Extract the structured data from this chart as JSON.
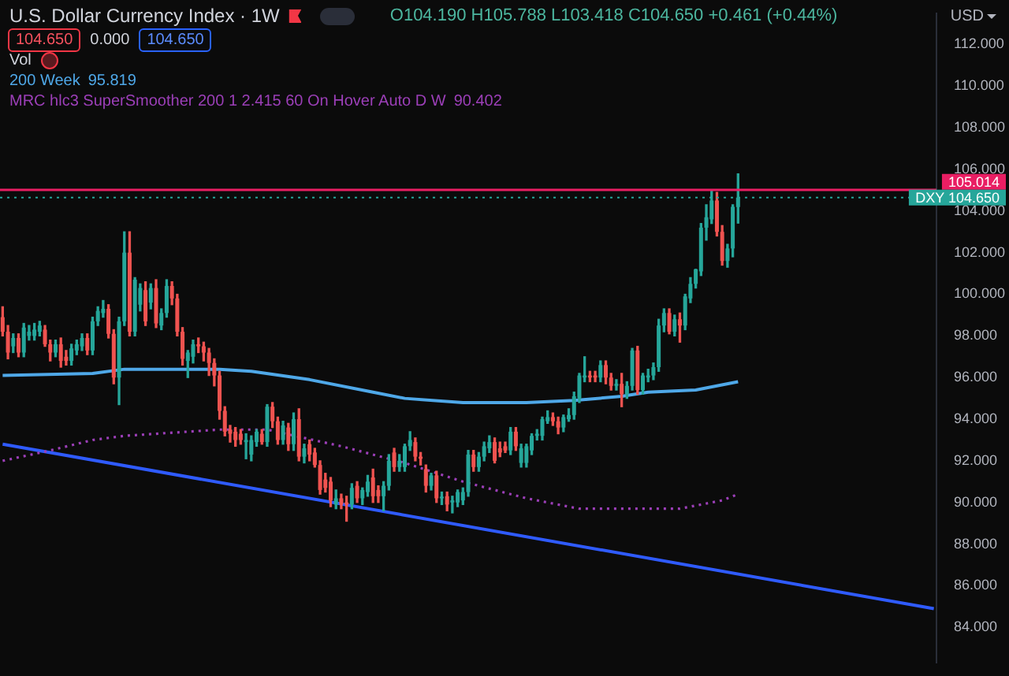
{
  "chart_data": {
    "type": "candlestick",
    "title": "U.S. Dollar Currency Index · 1W",
    "ylabel": "USD",
    "legend": "top left",
    "tick_labels": "y",
    "marker": "none",
    "categories": [
      null,
      null,
      null,
      null,
      null,
      null,
      null,
      null,
      null,
      null,
      null,
      null,
      null,
      null,
      null,
      null,
      null,
      null,
      null,
      null,
      null,
      null,
      null,
      null,
      null,
      null,
      null,
      null,
      null,
      null,
      null,
      null,
      null,
      null,
      null,
      null,
      null,
      null,
      null,
      null,
      null,
      null,
      null,
      null,
      null,
      null,
      null,
      null,
      null,
      null,
      null,
      null,
      null,
      null,
      null,
      null,
      null,
      null,
      null,
      null,
      null,
      null,
      null,
      null,
      null,
      null,
      null,
      null,
      null,
      null,
      null,
      null,
      null,
      null,
      null,
      null,
      null,
      null,
      null,
      null,
      null,
      null,
      null,
      null,
      null,
      null,
      null,
      null,
      null,
      null,
      null,
      null,
      null,
      null,
      null,
      null,
      null,
      null,
      null,
      null,
      null,
      null,
      null,
      null,
      null,
      null,
      null,
      null,
      null,
      null,
      null,
      null,
      null,
      null,
      null,
      null,
      null,
      null,
      null,
      null,
      null,
      null,
      null,
      null,
      null,
      null,
      null,
      null,
      null,
      null,
      null,
      null,
      null,
      null,
      null,
      null,
      null,
      null,
      null,
      null,
      null,
      null,
      null,
      null,
      null,
      null,
      null,
      null,
      null,
      null,
      null,
      null,
      null,
      null,
      null,
      null,
      null,
      null,
      null,
      null,
      null,
      null,
      null,
      null,
      null,
      null,
      null,
      null,
      null,
      null,
      null,
      null,
      null,
      null,
      null,
      null,
      null
    ],
    "ohlc": [
      [
        98.9,
        99.4,
        98.0,
        98.2
      ],
      [
        98.2,
        98.5,
        96.9,
        97.2
      ],
      [
        97.5,
        98.1,
        97.2,
        97.9
      ],
      [
        97.9,
        98.1,
        97.0,
        97.2
      ],
      [
        97.2,
        98.6,
        97.0,
        98.4
      ],
      [
        98.0,
        98.5,
        97.8,
        98.2
      ],
      [
        98.0,
        98.6,
        97.8,
        98.3
      ],
      [
        98.2,
        98.7,
        98.0,
        98.5
      ],
      [
        98.3,
        98.5,
        97.5,
        97.6
      ],
      [
        97.6,
        97.8,
        96.8,
        97.2
      ],
      [
        97.2,
        97.8,
        97.0,
        97.6
      ],
      [
        97.6,
        97.9,
        96.5,
        96.8
      ],
      [
        97.0,
        97.3,
        96.6,
        96.8
      ],
      [
        96.8,
        97.6,
        96.6,
        97.4
      ],
      [
        97.3,
        97.8,
        97.1,
        97.6
      ],
      [
        97.5,
        98.1,
        97.3,
        97.9
      ],
      [
        97.9,
        98.1,
        97.1,
        97.3
      ],
      [
        97.3,
        98.9,
        97.1,
        98.7
      ],
      [
        98.7,
        99.4,
        98.5,
        99.2
      ],
      [
        99.1,
        99.7,
        98.9,
        99.3
      ],
      [
        99.3,
        99.5,
        97.9,
        98.1
      ],
      [
        98.1,
        98.3,
        95.7,
        96.0
      ],
      [
        96.0,
        98.9,
        94.7,
        98.7
      ],
      [
        98.7,
        103.0,
        98.5,
        102.0
      ],
      [
        102.0,
        103.0,
        98.0,
        98.2
      ],
      [
        98.2,
        100.8,
        98.0,
        100.7
      ],
      [
        99.5,
        100.5,
        99.2,
        100.3
      ],
      [
        100.2,
        100.6,
        98.5,
        98.7
      ],
      [
        99.6,
        100.5,
        99.3,
        100.3
      ],
      [
        100.3,
        100.7,
        98.4,
        98.6
      ],
      [
        98.5,
        99.3,
        98.3,
        99.1
      ],
      [
        99.1,
        100.7,
        98.9,
        100.4
      ],
      [
        100.4,
        100.6,
        99.5,
        99.8
      ],
      [
        99.8,
        100.0,
        98.0,
        98.2
      ],
      [
        98.2,
        98.4,
        96.6,
        96.9
      ],
      [
        96.8,
        97.3,
        96.0,
        97.2
      ],
      [
        97.0,
        97.8,
        96.7,
        97.6
      ],
      [
        97.6,
        97.9,
        97.2,
        97.5
      ],
      [
        97.5,
        97.7,
        96.8,
        97.2
      ],
      [
        97.2,
        97.4,
        96.1,
        96.7
      ],
      [
        96.7,
        96.9,
        95.6,
        96.1
      ],
      [
        96.1,
        96.3,
        94.0,
        94.4
      ],
      [
        94.4,
        94.6,
        93.2,
        93.4
      ],
      [
        93.5,
        93.7,
        92.9,
        93.3
      ],
      [
        93.4,
        93.6,
        92.7,
        93.0
      ],
      [
        93.3,
        93.5,
        92.8,
        93.0
      ],
      [
        92.9,
        93.3,
        92.1,
        93.0
      ],
      [
        92.3,
        93.2,
        92.0,
        93.0
      ],
      [
        92.9,
        93.5,
        92.7,
        93.4
      ],
      [
        93.3,
        93.5,
        92.8,
        92.9
      ],
      [
        92.9,
        94.7,
        92.7,
        94.6
      ],
      [
        94.6,
        94.8,
        93.6,
        93.9
      ],
      [
        93.9,
        94.1,
        92.8,
        93.0
      ],
      [
        93.0,
        93.9,
        92.8,
        93.7
      ],
      [
        93.6,
        93.8,
        92.5,
        92.8
      ],
      [
        92.8,
        94.3,
        92.5,
        94.0
      ],
      [
        94.0,
        94.5,
        92.0,
        92.2
      ],
      [
        92.2,
        92.8,
        91.9,
        92.6
      ],
      [
        92.8,
        93.0,
        92.0,
        92.3
      ],
      [
        92.4,
        92.6,
        91.7,
        91.8
      ],
      [
        91.8,
        92.0,
        90.4,
        90.6
      ],
      [
        91.1,
        91.4,
        90.5,
        90.7
      ],
      [
        91.0,
        91.2,
        89.8,
        90.1
      ],
      [
        89.9,
        90.6,
        89.7,
        90.2
      ],
      [
        90.2,
        90.4,
        89.7,
        89.9
      ],
      [
        90.0,
        90.3,
        89.1,
        89.9
      ],
      [
        89.9,
        90.9,
        89.7,
        90.7
      ],
      [
        90.8,
        91.0,
        90.0,
        90.2
      ],
      [
        90.2,
        90.7,
        89.9,
        90.6
      ],
      [
        90.5,
        91.3,
        90.3,
        91.0
      ],
      [
        91.2,
        91.6,
        90.0,
        90.3
      ],
      [
        90.6,
        90.8,
        90.0,
        90.3
      ],
      [
        90.3,
        91.0,
        89.6,
        90.8
      ],
      [
        90.8,
        92.3,
        90.6,
        92.0
      ],
      [
        92.4,
        92.6,
        91.5,
        91.7
      ],
      [
        91.7,
        92.3,
        91.5,
        92.0
      ],
      [
        91.7,
        92.8,
        91.5,
        92.7
      ],
      [
        92.7,
        93.4,
        92.5,
        93.0
      ],
      [
        92.9,
        93.1,
        92.0,
        92.2
      ],
      [
        92.2,
        92.4,
        91.8,
        92.1
      ],
      [
        91.6,
        91.8,
        90.5,
        90.8
      ],
      [
        90.8,
        91.4,
        90.6,
        91.3
      ],
      [
        91.3,
        91.5,
        90.0,
        90.2
      ],
      [
        90.2,
        90.5,
        89.9,
        90.2
      ],
      [
        90.3,
        90.5,
        89.6,
        89.9
      ],
      [
        90.0,
        90.3,
        89.5,
        90.1
      ],
      [
        90.0,
        90.6,
        89.8,
        90.5
      ],
      [
        90.1,
        90.7,
        89.9,
        90.5
      ],
      [
        90.5,
        92.5,
        90.3,
        92.3
      ],
      [
        92.3,
        92.5,
        91.5,
        91.7
      ],
      [
        91.7,
        92.4,
        91.5,
        92.2
      ],
      [
        92.2,
        92.9,
        92.0,
        92.7
      ],
      [
        92.6,
        93.2,
        92.4,
        92.9
      ],
      [
        92.9,
        93.1,
        91.9,
        92.0
      ],
      [
        92.6,
        92.9,
        92.2,
        92.4
      ],
      [
        92.7,
        92.9,
        92.4,
        92.5
      ],
      [
        92.5,
        93.6,
        92.3,
        93.4
      ],
      [
        93.4,
        93.6,
        92.5,
        92.7
      ],
      [
        91.9,
        92.8,
        91.7,
        92.6
      ],
      [
        91.9,
        92.8,
        91.7,
        92.7
      ],
      [
        92.5,
        93.3,
        92.3,
        93.2
      ],
      [
        93.2,
        93.5,
        93.0,
        93.3
      ],
      [
        93.2,
        94.1,
        93.0,
        94.0
      ],
      [
        93.9,
        94.4,
        93.8,
        94.1
      ],
      [
        94.1,
        94.3,
        93.7,
        93.9
      ],
      [
        93.9,
        94.1,
        93.3,
        93.6
      ],
      [
        93.6,
        94.2,
        93.4,
        94.1
      ],
      [
        94.0,
        94.5,
        93.9,
        94.2
      ],
      [
        94.2,
        95.3,
        94.0,
        95.1
      ],
      [
        95.0,
        96.2,
        94.8,
        96.1
      ],
      [
        96.0,
        97.0,
        95.8,
        96.1
      ],
      [
        96.1,
        96.3,
        95.8,
        96.0
      ],
      [
        96.1,
        96.3,
        95.8,
        96.0
      ],
      [
        96.0,
        96.8,
        95.8,
        96.6
      ],
      [
        96.6,
        96.8,
        95.7,
        96.0
      ],
      [
        96.0,
        96.2,
        95.4,
        95.6
      ],
      [
        95.6,
        95.9,
        95.4,
        95.7
      ],
      [
        95.7,
        96.2,
        94.6,
        95.2
      ],
      [
        95.2,
        95.8,
        95.0,
        95.6
      ],
      [
        95.6,
        97.4,
        95.4,
        97.3
      ],
      [
        97.3,
        97.5,
        95.2,
        95.4
      ],
      [
        95.4,
        96.2,
        95.2,
        96.1
      ],
      [
        96.0,
        96.4,
        95.8,
        96.1
      ],
      [
        96.1,
        96.7,
        95.9,
        96.5
      ],
      [
        96.5,
        98.8,
        96.3,
        98.5
      ],
      [
        98.5,
        99.3,
        98.2,
        99.1
      ],
      [
        99.1,
        99.3,
        98.1,
        98.2
      ],
      [
        98.2,
        99.0,
        98.0,
        98.8
      ],
      [
        98.8,
        99.1,
        97.7,
        98.5
      ],
      [
        98.5,
        100.0,
        98.3,
        99.9
      ],
      [
        99.8,
        100.8,
        99.6,
        100.5
      ],
      [
        100.5,
        101.2,
        100.3,
        101.2
      ],
      [
        101.1,
        103.4,
        100.9,
        103.2
      ],
      [
        103.2,
        104.3,
        102.6,
        103.7
      ],
      [
        103.6,
        105.0,
        103.4,
        104.5
      ],
      [
        104.5,
        104.9,
        102.8,
        103.0
      ],
      [
        103.0,
        103.3,
        101.4,
        101.6
      ],
      [
        101.6,
        102.4,
        101.3,
        102.2
      ],
      [
        102.2,
        104.3,
        101.8,
        104.2
      ],
      [
        104.19,
        105.788,
        103.418,
        104.65
      ],
      null,
      null,
      null,
      null,
      null,
      null,
      null,
      null,
      null,
      null,
      null,
      null,
      null,
      null,
      null,
      null,
      null,
      null,
      null,
      null,
      null,
      null,
      null,
      null,
      null,
      null,
      null,
      null,
      null,
      null,
      null,
      null,
      null,
      null,
      null,
      null,
      null
    ],
    "series": [
      {
        "name": "200 Week",
        "type": "line",
        "color": "#4fa8e8",
        "values": [
          96.1,
          null,
          null,
          null,
          null,
          null,
          null,
          null,
          null,
          null,
          null,
          null,
          null,
          null,
          null,
          null,
          null,
          96.2,
          null,
          null,
          null,
          null,
          null,
          96.4,
          null,
          null,
          null,
          null,
          null,
          null,
          null,
          null,
          null,
          null,
          null,
          96.4,
          null,
          null,
          null,
          null,
          null,
          96.4,
          null,
          null,
          null,
          null,
          null,
          96.3,
          null,
          null,
          null,
          null,
          null,
          null,
          null,
          null,
          null,
          null,
          95.9,
          null,
          null,
          null,
          null,
          null,
          null,
          null,
          null,
          null,
          null,
          null,
          95.3,
          null,
          null,
          null,
          null,
          null,
          95.0,
          null,
          null,
          null,
          null,
          null,
          null,
          null,
          null,
          null,
          null,
          94.8,
          null,
          null,
          null,
          null,
          null,
          null,
          null,
          null,
          null,
          null,
          null,
          94.8,
          null,
          null,
          null,
          null,
          null,
          null,
          null,
          null,
          94.9,
          null,
          null,
          null,
          null,
          null,
          null,
          null,
          null,
          95.1,
          null,
          null,
          null,
          null,
          95.3,
          null,
          null,
          null,
          null,
          null,
          null,
          null,
          null,
          95.4,
          null,
          null,
          null,
          null,
          null,
          null,
          null,
          95.8,
          null,
          null,
          null,
          null,
          null,
          null,
          null,
          null,
          null,
          null,
          null,
          null,
          null,
          null,
          null,
          null,
          null,
          null,
          null,
          null,
          null,
          null,
          null,
          null,
          null,
          null,
          null,
          null,
          null,
          null,
          null,
          null,
          null,
          null,
          null,
          null,
          null
        ]
      },
      {
        "name": "MRC hlc3 SuperSmoother 200 1 2.415 60 On Hover Auto D W",
        "type": "line",
        "color": "#9c3fb8",
        "line_style": "dotted",
        "values": [
          92.0,
          null,
          null,
          null,
          null,
          null,
          null,
          null,
          null,
          92.5,
          null,
          null,
          null,
          null,
          null,
          null,
          null,
          93.0,
          null,
          null,
          null,
          null,
          null,
          93.2,
          null,
          null,
          null,
          null,
          null,
          null,
          null,
          null,
          null,
          null,
          null,
          null,
          null,
          null,
          null,
          null,
          null,
          93.5,
          null,
          null,
          null,
          null,
          null,
          null,
          null,
          null,
          93.5,
          null,
          null,
          null,
          null,
          null,
          null,
          93.1,
          null,
          null,
          null,
          null,
          null,
          null,
          92.7,
          null,
          null,
          null,
          null,
          null,
          null,
          null,
          null,
          null,
          null,
          null,
          91.9,
          null,
          null,
          null,
          null,
          null,
          null,
          null,
          null,
          null,
          null,
          91.0,
          null,
          null,
          null,
          null,
          null,
          null,
          null,
          null,
          null,
          null,
          null,
          90.2,
          null,
          null,
          null,
          null,
          null,
          null,
          null,
          null,
          null,
          89.7,
          null,
          null,
          null,
          null,
          null,
          null,
          null,
          89.7,
          null,
          null,
          null,
          null,
          null,
          null,
          null,
          null,
          null,
          null,
          89.7,
          null,
          null,
          null,
          null,
          null,
          null,
          null,
          90.1,
          null,
          null,
          90.4,
          null,
          null,
          null,
          null,
          null,
          null,
          null,
          null,
          null,
          null,
          null,
          null,
          null,
          null,
          null,
          null,
          null,
          null,
          null,
          null,
          null,
          null,
          null,
          null,
          null,
          null,
          null,
          null,
          null,
          null,
          null,
          null,
          null,
          null,
          null,
          null,
          null
        ]
      },
      {
        "type": "line",
        "color": "#2f5bff",
        "values": [
          92.8,
          null,
          null,
          null,
          null,
          null,
          null,
          null,
          null,
          null,
          null,
          null,
          null,
          null,
          null,
          null,
          null,
          null,
          null,
          null,
          null,
          null,
          null,
          null,
          null,
          null,
          null,
          null,
          null,
          null,
          null,
          null,
          null,
          null,
          null,
          null,
          null,
          null,
          null,
          null,
          null,
          null,
          null,
          null,
          null,
          null,
          null,
          null,
          null,
          null,
          null,
          null,
          null,
          null,
          null,
          null,
          null,
          null,
          null,
          null,
          null,
          null,
          null,
          null,
          null,
          null,
          null,
          null,
          null,
          null,
          null,
          null,
          null,
          null,
          null,
          null,
          null,
          null,
          null,
          null,
          null,
          null,
          null,
          null,
          null,
          null,
          null,
          null,
          null,
          null,
          null,
          null,
          null,
          null,
          null,
          null,
          null,
          null,
          null,
          null,
          null,
          null,
          null,
          null,
          null,
          null,
          null,
          null,
          null,
          null,
          null,
          null,
          null,
          null,
          null,
          null,
          null,
          null,
          null,
          null,
          null,
          null,
          null,
          null,
          null,
          null,
          null,
          null,
          null,
          null,
          null,
          null,
          null,
          null,
          null,
          null,
          null,
          null,
          null,
          null,
          null,
          null,
          null,
          null,
          null,
          null,
          null,
          null,
          null,
          null,
          null,
          null,
          null,
          null,
          null,
          null,
          null,
          null,
          null,
          null,
          null,
          null,
          null,
          null,
          null,
          null,
          null,
          null,
          null,
          null,
          null,
          null,
          null,
          null,
          null,
          null,
          84.9
        ]
      }
    ],
    "ref_lines": [
      {
        "axis": "y",
        "value": 105.014,
        "label": "105.014",
        "color": "#e91e63"
      },
      {
        "axis": "y",
        "value": 104.65,
        "label": "DXY 104.650",
        "color": "#26a69a",
        "line_style": "dotted"
      }
    ],
    "ylim": [
      82.3,
      113.5
    ],
    "yticks": [
      {
        "value": 84,
        "label": "84.000"
      },
      {
        "value": 86,
        "label": "86.000"
      },
      {
        "value": 88,
        "label": "88.000"
      },
      {
        "value": 90,
        "label": "90.000"
      },
      {
        "value": 92,
        "label": "92.000"
      },
      {
        "value": 94,
        "label": "94.000"
      },
      {
        "value": 96,
        "label": "96.000"
      },
      {
        "value": 98,
        "label": "98.000"
      },
      {
        "value": 100,
        "label": "100.000"
      },
      {
        "value": 102,
        "label": "102.000"
      },
      {
        "value": 104,
        "label": "104.000"
      },
      {
        "value": 106,
        "label": "106.000"
      },
      {
        "value": 108,
        "label": "108.000"
      },
      {
        "value": 110,
        "label": "110.000"
      },
      {
        "value": 112,
        "label": "112.000"
      }
    ],
    "annotations": [
      "O104.190 H105.788 L103.418 C104.650 +0.461 (+0.44%)",
      "104.650",
      "0.000",
      "104.650",
      "Vol",
      "95.819",
      "90.402"
    ]
  }
}
